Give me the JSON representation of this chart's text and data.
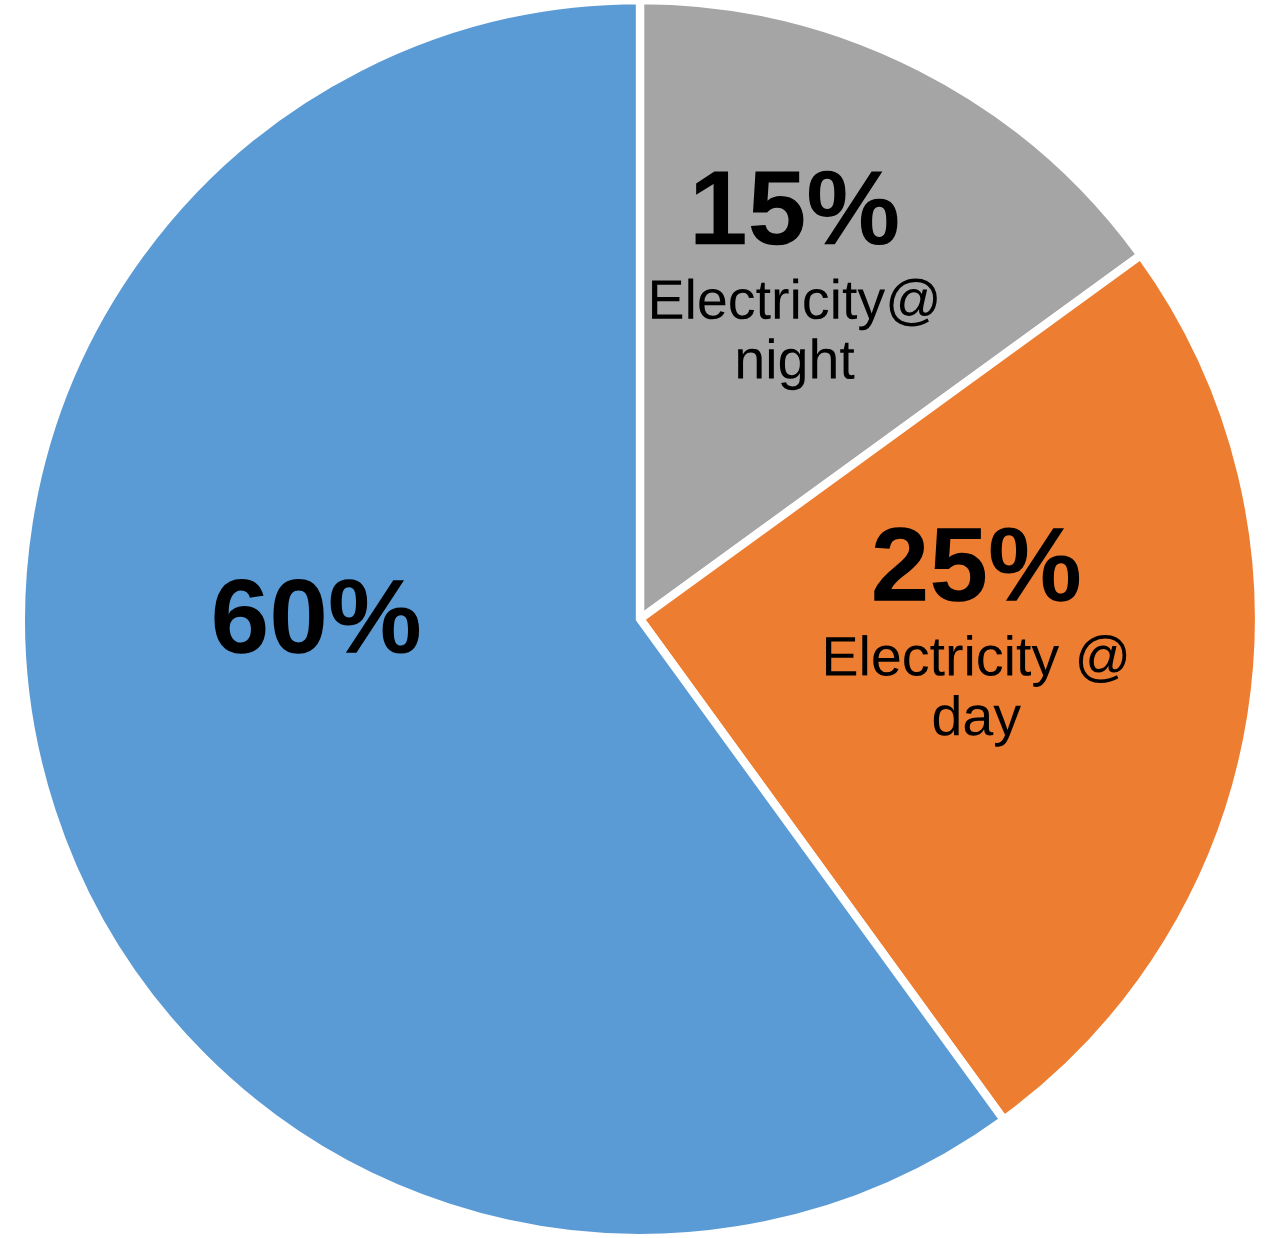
{
  "chart_data": {
    "type": "pie",
    "categories": [
      "Electricity@ night",
      "Electricity @ day",
      null
    ],
    "values": [
      15,
      25,
      60
    ],
    "colors": [
      "#a5a5a5",
      "#ed7d31",
      "#5b9bd5"
    ],
    "value_labels": [
      "15%",
      "25%",
      "60%"
    ],
    "legend": false
  }
}
